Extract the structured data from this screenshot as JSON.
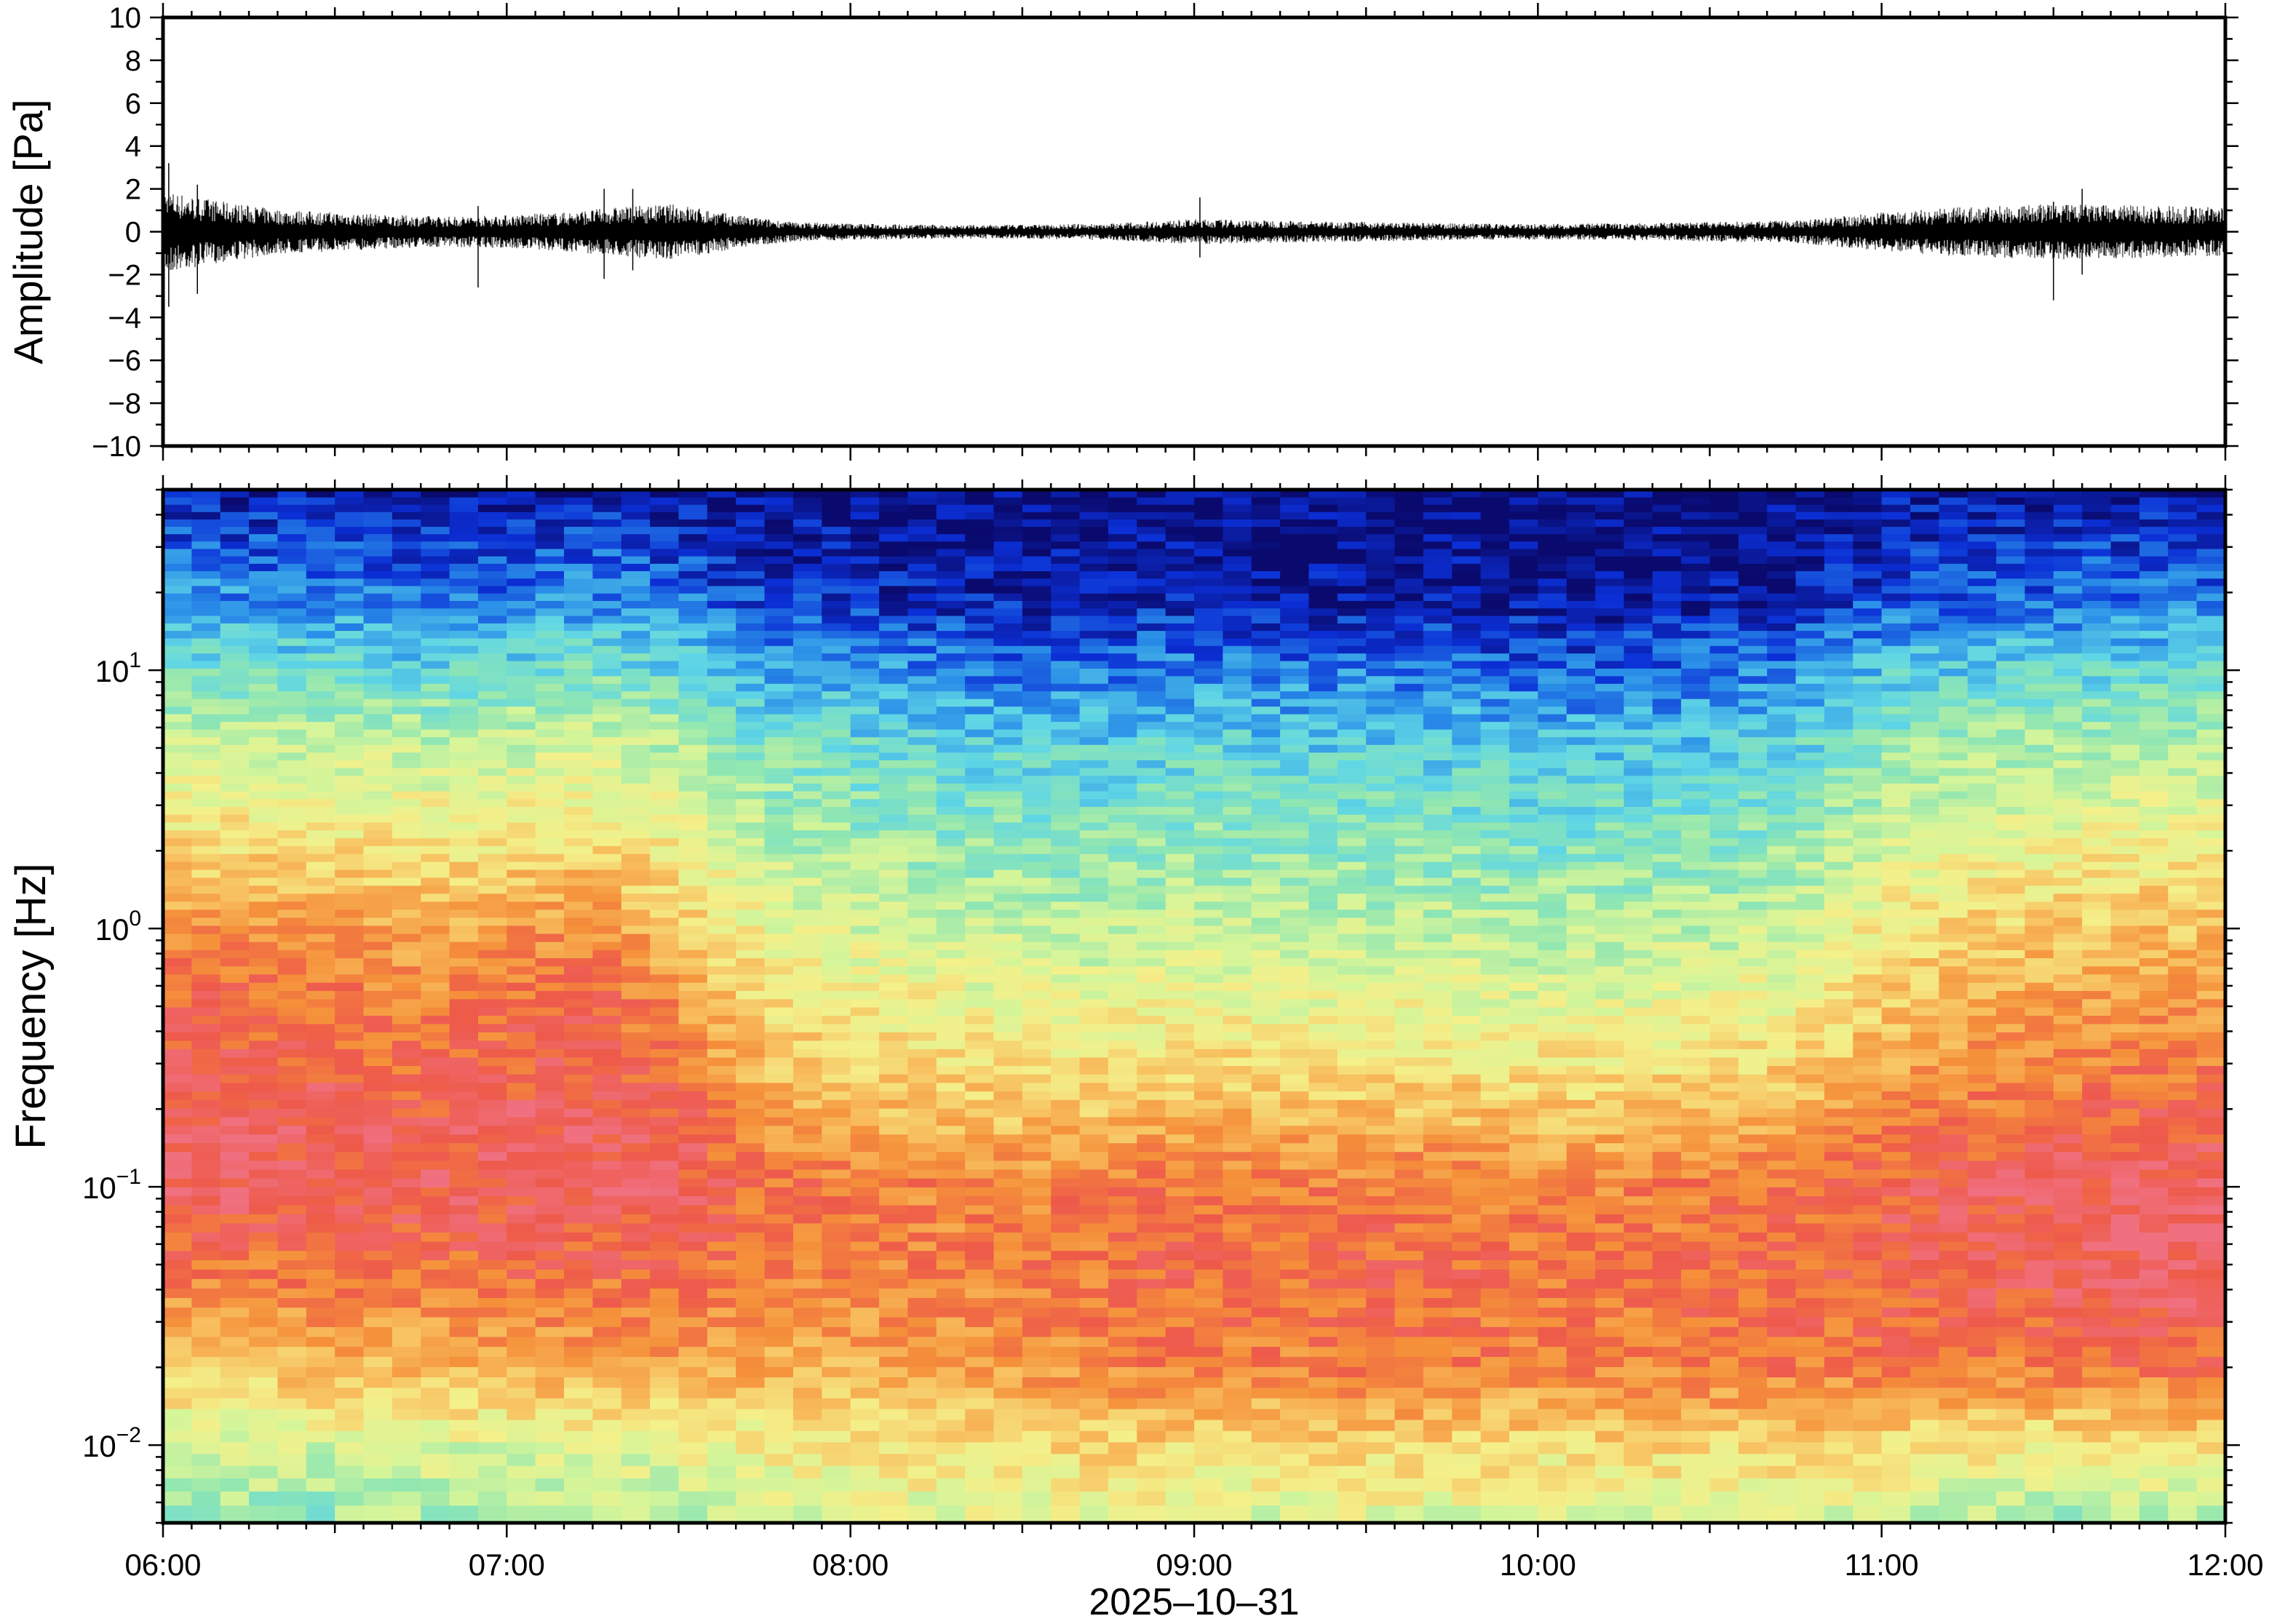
{
  "chart_data": [
    {
      "type": "line",
      "panel": "waveform",
      "xlabel": "",
      "ylabel": "Amplitude [Pa]",
      "ylim": [
        -10,
        10
      ],
      "y_ticks": [
        -10,
        -8,
        -6,
        -4,
        -2,
        0,
        2,
        4,
        6,
        8,
        10
      ],
      "y_tick_labels": [
        "−10",
        "−8",
        "−6",
        "−4",
        "−2",
        "0",
        "2",
        "4",
        "6",
        "8",
        "10"
      ],
      "x_range": [
        "06:00",
        "12:00"
      ],
      "envelope": {
        "x": [
          "06:00",
          "06:10",
          "06:20",
          "06:30",
          "06:40",
          "06:50",
          "07:00",
          "07:10",
          "07:20",
          "07:30",
          "07:40",
          "07:50",
          "08:00",
          "08:15",
          "08:30",
          "08:45",
          "09:00",
          "09:15",
          "09:30",
          "09:45",
          "10:00",
          "10:15",
          "10:30",
          "10:45",
          "11:00",
          "11:15",
          "11:30",
          "11:45",
          "12:00"
        ],
        "amplitude": [
          1.5,
          1.1,
          0.8,
          0.7,
          0.6,
          0.55,
          0.6,
          0.7,
          0.9,
          1.0,
          0.6,
          0.35,
          0.3,
          0.25,
          0.25,
          0.3,
          0.45,
          0.4,
          0.35,
          0.3,
          0.28,
          0.3,
          0.35,
          0.4,
          0.7,
          0.9,
          1.0,
          0.95,
          0.9
        ]
      },
      "peaks": [
        {
          "x": "06:01",
          "min": -3.5,
          "max": 3.2
        },
        {
          "x": "06:06",
          "min": -2.9,
          "max": 2.2
        },
        {
          "x": "06:55",
          "min": -2.6,
          "max": 1.2
        },
        {
          "x": "07:17",
          "min": -2.2,
          "max": 2.0
        },
        {
          "x": "07:22",
          "min": -1.8,
          "max": 2.0
        },
        {
          "x": "09:01",
          "min": -1.2,
          "max": 1.6
        },
        {
          "x": "11:30",
          "min": -3.2,
          "max": 1.4
        },
        {
          "x": "11:35",
          "min": -2.0,
          "max": 2.0
        }
      ]
    },
    {
      "type": "heatmap",
      "panel": "spectrogram",
      "xlabel": "2025‒10‒31",
      "ylabel": "Frequency [Hz]",
      "y_scale": "log",
      "ylim": [
        0.005,
        50
      ],
      "y_ticks": [
        {
          "base": "10",
          "exp": "−2"
        },
        {
          "base": "10",
          "exp": "−1"
        },
        {
          "base": "10",
          "exp": "0"
        },
        {
          "base": "10",
          "exp": "1"
        }
      ],
      "x_tick_labels": [
        "06:00",
        "07:00",
        "08:00",
        "09:00",
        "10:00",
        "11:00",
        "12:00"
      ],
      "colormap": [
        "#0a0a6e",
        "#0b2fd6",
        "#2a8fe8",
        "#5fd6e6",
        "#8fe6b2",
        "#d4f59a",
        "#f4f08a",
        "#f8c060",
        "#f5903a",
        "#ee5a4a",
        "#f07080"
      ],
      "time_columns": [
        "06:00",
        "06:15",
        "06:30",
        "06:45",
        "07:00",
        "07:15",
        "07:30",
        "07:45",
        "08:00",
        "08:15",
        "08:30",
        "08:45",
        "09:00",
        "09:15",
        "09:30",
        "09:45",
        "10:00",
        "10:15",
        "10:30",
        "10:45",
        "11:00",
        "11:15",
        "11:30",
        "11:45",
        "12:00"
      ],
      "frequency_rows_hz": [
        0.005,
        0.01,
        0.02,
        0.05,
        0.1,
        0.2,
        0.5,
        1,
        2,
        5,
        10,
        20,
        50
      ],
      "intensity": [
        [
          0.4,
          0.48,
          0.7,
          0.86,
          0.96,
          0.94,
          0.88,
          0.8,
          0.66,
          0.52,
          0.36,
          0.22,
          0.06
        ],
        [
          0.42,
          0.5,
          0.7,
          0.84,
          0.95,
          0.93,
          0.87,
          0.79,
          0.65,
          0.5,
          0.34,
          0.2,
          0.05
        ],
        [
          0.4,
          0.52,
          0.72,
          0.86,
          0.94,
          0.92,
          0.86,
          0.78,
          0.64,
          0.5,
          0.34,
          0.2,
          0.05
        ],
        [
          0.44,
          0.52,
          0.72,
          0.86,
          0.93,
          0.9,
          0.82,
          0.74,
          0.62,
          0.48,
          0.32,
          0.16,
          0.04
        ],
        [
          0.42,
          0.54,
          0.74,
          0.88,
          0.94,
          0.92,
          0.86,
          0.78,
          0.64,
          0.5,
          0.34,
          0.18,
          0.05
        ],
        [
          0.44,
          0.54,
          0.74,
          0.88,
          0.95,
          0.93,
          0.88,
          0.8,
          0.66,
          0.52,
          0.36,
          0.2,
          0.06
        ],
        [
          0.46,
          0.56,
          0.76,
          0.88,
          0.94,
          0.9,
          0.8,
          0.7,
          0.6,
          0.46,
          0.32,
          0.16,
          0.04
        ],
        [
          0.52,
          0.58,
          0.74,
          0.84,
          0.86,
          0.76,
          0.64,
          0.56,
          0.48,
          0.38,
          0.24,
          0.1,
          0.02
        ],
        [
          0.54,
          0.6,
          0.74,
          0.82,
          0.84,
          0.72,
          0.6,
          0.52,
          0.44,
          0.34,
          0.22,
          0.08,
          0.02
        ],
        [
          0.52,
          0.62,
          0.76,
          0.82,
          0.82,
          0.7,
          0.58,
          0.5,
          0.42,
          0.32,
          0.2,
          0.06,
          0.01
        ],
        [
          0.54,
          0.64,
          0.78,
          0.84,
          0.82,
          0.68,
          0.56,
          0.48,
          0.4,
          0.3,
          0.18,
          0.05,
          0.01
        ],
        [
          0.54,
          0.66,
          0.8,
          0.86,
          0.84,
          0.7,
          0.56,
          0.48,
          0.4,
          0.3,
          0.18,
          0.05,
          0.01
        ],
        [
          0.52,
          0.66,
          0.84,
          0.88,
          0.86,
          0.72,
          0.58,
          0.5,
          0.42,
          0.32,
          0.2,
          0.06,
          0.01
        ],
        [
          0.5,
          0.64,
          0.82,
          0.86,
          0.84,
          0.7,
          0.56,
          0.48,
          0.4,
          0.3,
          0.18,
          0.05,
          0.01
        ],
        [
          0.52,
          0.66,
          0.84,
          0.88,
          0.84,
          0.7,
          0.56,
          0.48,
          0.4,
          0.3,
          0.18,
          0.04,
          0.01
        ],
        [
          0.52,
          0.66,
          0.84,
          0.88,
          0.84,
          0.7,
          0.56,
          0.48,
          0.4,
          0.3,
          0.18,
          0.04,
          0.01
        ],
        [
          0.5,
          0.64,
          0.82,
          0.86,
          0.82,
          0.68,
          0.54,
          0.46,
          0.38,
          0.28,
          0.16,
          0.03,
          0.0
        ],
        [
          0.5,
          0.64,
          0.82,
          0.86,
          0.82,
          0.68,
          0.54,
          0.46,
          0.38,
          0.28,
          0.16,
          0.03,
          0.0
        ],
        [
          0.52,
          0.66,
          0.84,
          0.88,
          0.84,
          0.7,
          0.56,
          0.48,
          0.4,
          0.3,
          0.18,
          0.05,
          0.01
        ],
        [
          0.5,
          0.66,
          0.84,
          0.88,
          0.86,
          0.72,
          0.58,
          0.5,
          0.42,
          0.32,
          0.2,
          0.06,
          0.01
        ],
        [
          0.48,
          0.64,
          0.84,
          0.9,
          0.9,
          0.8,
          0.68,
          0.6,
          0.52,
          0.4,
          0.28,
          0.12,
          0.04
        ],
        [
          0.46,
          0.62,
          0.84,
          0.92,
          0.92,
          0.84,
          0.74,
          0.66,
          0.56,
          0.44,
          0.3,
          0.14,
          0.04
        ],
        [
          0.42,
          0.6,
          0.84,
          0.94,
          0.94,
          0.86,
          0.76,
          0.68,
          0.58,
          0.46,
          0.32,
          0.16,
          0.05
        ],
        [
          0.46,
          0.62,
          0.86,
          0.96,
          0.96,
          0.88,
          0.78,
          0.7,
          0.6,
          0.46,
          0.32,
          0.16,
          0.05
        ],
        [
          0.48,
          0.64,
          0.86,
          0.96,
          0.96,
          0.88,
          0.78,
          0.7,
          0.6,
          0.46,
          0.32,
          0.16,
          0.05
        ]
      ]
    }
  ]
}
